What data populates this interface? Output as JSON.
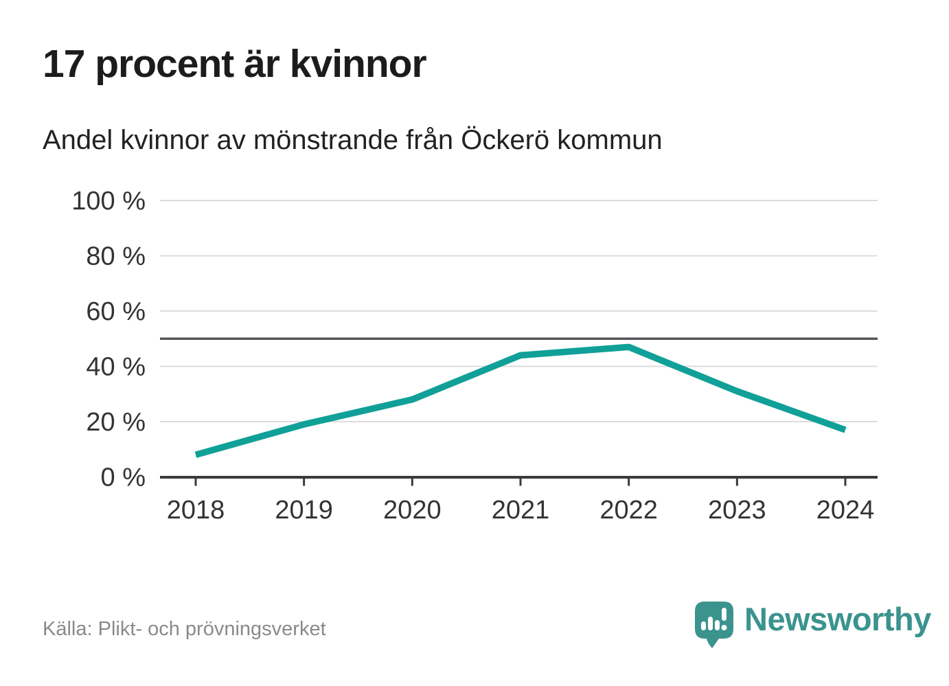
{
  "header": {
    "title": "17 procent är kvinnor",
    "subtitle": "Andel kvinnor av mönstrande från Öckerö kommun"
  },
  "footer": {
    "source": "Källa: Plikt- och prövningsverket",
    "logo_text": "Newsworthy"
  },
  "colors": {
    "background": "#ffffff",
    "line": "#10a098",
    "grid": "#dcdcdc",
    "reference_line": "#55565a",
    "axis": "#3a3a3a",
    "tick_text": "#333333",
    "title_text": "#1c1c1c",
    "source_text": "#8a8a8a",
    "logo": "#3b938e"
  },
  "chart_data": {
    "type": "line",
    "title": "17 procent är kvinnor",
    "subtitle": "Andel kvinnor av mönstrande från Öckerö kommun",
    "x": [
      "2018",
      "2019",
      "2020",
      "2021",
      "2022",
      "2023",
      "2024"
    ],
    "series": [
      {
        "name": "Andel kvinnor av mönstrande",
        "values": [
          8,
          19,
          28,
          44,
          47,
          31,
          17
        ]
      }
    ],
    "unit": "%",
    "ylim": [
      0,
      100
    ],
    "yticks": [
      0,
      20,
      40,
      60,
      80,
      100
    ],
    "ytick_suffix": " %",
    "reference_line": 50,
    "grid": true,
    "legend": false,
    "source": "Källa: Plikt- och prövningsverket"
  }
}
